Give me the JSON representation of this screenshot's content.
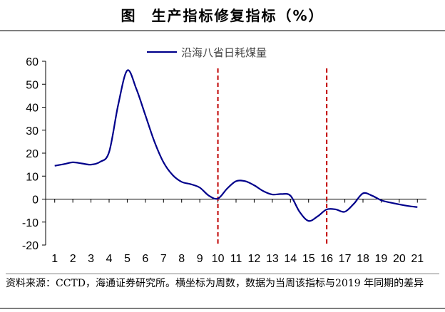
{
  "figure": {
    "label": "图",
    "title": "生产指标修复指标（%）"
  },
  "chart_data": {
    "type": "line",
    "x": [
      1,
      1.5,
      2,
      2.5,
      3,
      3.5,
      4,
      4.5,
      5,
      5.5,
      6,
      6.5,
      7,
      7.5,
      8,
      8.5,
      9,
      9.5,
      10,
      10.5,
      11,
      11.5,
      12,
      12.5,
      13,
      13.5,
      14,
      14.5,
      15,
      15.5,
      16,
      16.5,
      17,
      17.5,
      18,
      18.5,
      19,
      19.5,
      20,
      20.5,
      21
    ],
    "series": [
      {
        "name": "沿海八省日耗煤量",
        "color": "#00008B",
        "values": [
          14.5,
          15.2,
          16.0,
          15.5,
          15.0,
          16.2,
          20.5,
          41.0,
          56.0,
          48.0,
          36.5,
          25.0,
          16.0,
          10.5,
          7.5,
          6.5,
          5.0,
          1.5,
          0.2,
          4.5,
          7.8,
          7.8,
          6.0,
          3.5,
          2.0,
          2.2,
          1.5,
          -5.5,
          -9.5,
          -7.5,
          -4.5,
          -4.5,
          -5.5,
          -2.0,
          2.5,
          1.5,
          -0.5,
          -1.5,
          -2.3,
          -3.0,
          -3.5
        ]
      }
    ],
    "xticks": [
      "1",
      "2",
      "3",
      "4",
      "5",
      "6",
      "7",
      "8",
      "9",
      "10",
      "11",
      "12",
      "13",
      "14",
      "15",
      "16",
      "17",
      "18",
      "19",
      "20",
      "21"
    ],
    "yticks": [
      "-20",
      "-10",
      "0",
      "10",
      "20",
      "30",
      "40",
      "50",
      "60"
    ],
    "ylim": [
      -20,
      60
    ],
    "xlim": [
      1,
      21
    ],
    "reference_lines_x": [
      10,
      16
    ],
    "reference_color": "#C00000",
    "grid": false,
    "legend_position": "top-center"
  },
  "source_text": "资料来源：CCTD，海通证券研究所。横坐标为周数，数据为当周该指标与2019 年同期的差异"
}
